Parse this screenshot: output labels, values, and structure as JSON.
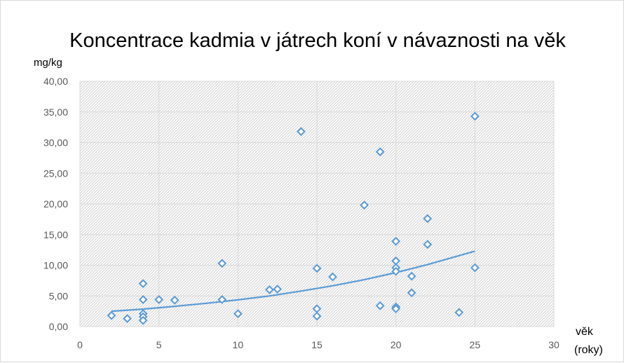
{
  "chart_data": {
    "type": "scatter",
    "title": "Koncentrace kadmia v játrech koní v návaznosti na věk",
    "ylabel": "mg/kg",
    "xlabel_line1": "věk",
    "xlabel_line2": "(roky)",
    "xlim": [
      0,
      30
    ],
    "ylim": [
      0,
      40
    ],
    "x_ticks": [
      0,
      5,
      10,
      15,
      20,
      25,
      30
    ],
    "y_ticks": [
      0,
      5,
      10,
      15,
      20,
      25,
      30,
      35,
      40
    ],
    "x_tick_labels": [
      "0",
      "5",
      "10",
      "15",
      "20",
      "25",
      "30"
    ],
    "y_tick_labels": [
      "0,00",
      "5,00",
      "10,00",
      "15,00",
      "20,00",
      "25,00",
      "30,00",
      "35,00",
      "40,00"
    ],
    "grid": true,
    "marker": "diamond-open",
    "colors": {
      "series": "#5b9bd5",
      "trend": "#5b9bd5",
      "grid": "#d9d9d9",
      "hatch": "#d0d0d0"
    },
    "points": [
      {
        "x": 2,
        "y": 1.8
      },
      {
        "x": 3,
        "y": 1.3
      },
      {
        "x": 4,
        "y": 7.0
      },
      {
        "x": 4,
        "y": 4.4
      },
      {
        "x": 4,
        "y": 2.1
      },
      {
        "x": 4,
        "y": 1.6
      },
      {
        "x": 4,
        "y": 1.0
      },
      {
        "x": 5,
        "y": 4.4
      },
      {
        "x": 6,
        "y": 4.3
      },
      {
        "x": 9,
        "y": 10.3
      },
      {
        "x": 9,
        "y": 4.4
      },
      {
        "x": 10,
        "y": 2.1
      },
      {
        "x": 12,
        "y": 6.0
      },
      {
        "x": 12.5,
        "y": 6.1
      },
      {
        "x": 14,
        "y": 31.8
      },
      {
        "x": 15,
        "y": 9.5
      },
      {
        "x": 15,
        "y": 2.9
      },
      {
        "x": 15,
        "y": 1.7
      },
      {
        "x": 16,
        "y": 8.1
      },
      {
        "x": 18,
        "y": 19.8
      },
      {
        "x": 19,
        "y": 28.5
      },
      {
        "x": 19,
        "y": 3.4
      },
      {
        "x": 20,
        "y": 13.9
      },
      {
        "x": 20,
        "y": 10.7
      },
      {
        "x": 20,
        "y": 9.6
      },
      {
        "x": 20,
        "y": 9.0
      },
      {
        "x": 20,
        "y": 3.2
      },
      {
        "x": 20,
        "y": 2.9
      },
      {
        "x": 21,
        "y": 8.2
      },
      {
        "x": 21,
        "y": 5.5
      },
      {
        "x": 22,
        "y": 17.6
      },
      {
        "x": 22,
        "y": 13.4
      },
      {
        "x": 24,
        "y": 2.3
      },
      {
        "x": 25,
        "y": 34.3
      },
      {
        "x": 25,
        "y": 9.6
      }
    ],
    "trendline": {
      "type": "exponential",
      "x": [
        2,
        4,
        6,
        8,
        10,
        12,
        14,
        16,
        18,
        20,
        22,
        25
      ],
      "y": [
        2.5,
        2.85,
        3.3,
        3.8,
        4.35,
        5.0,
        5.8,
        6.65,
        7.65,
        8.8,
        10.1,
        12.3
      ]
    }
  }
}
